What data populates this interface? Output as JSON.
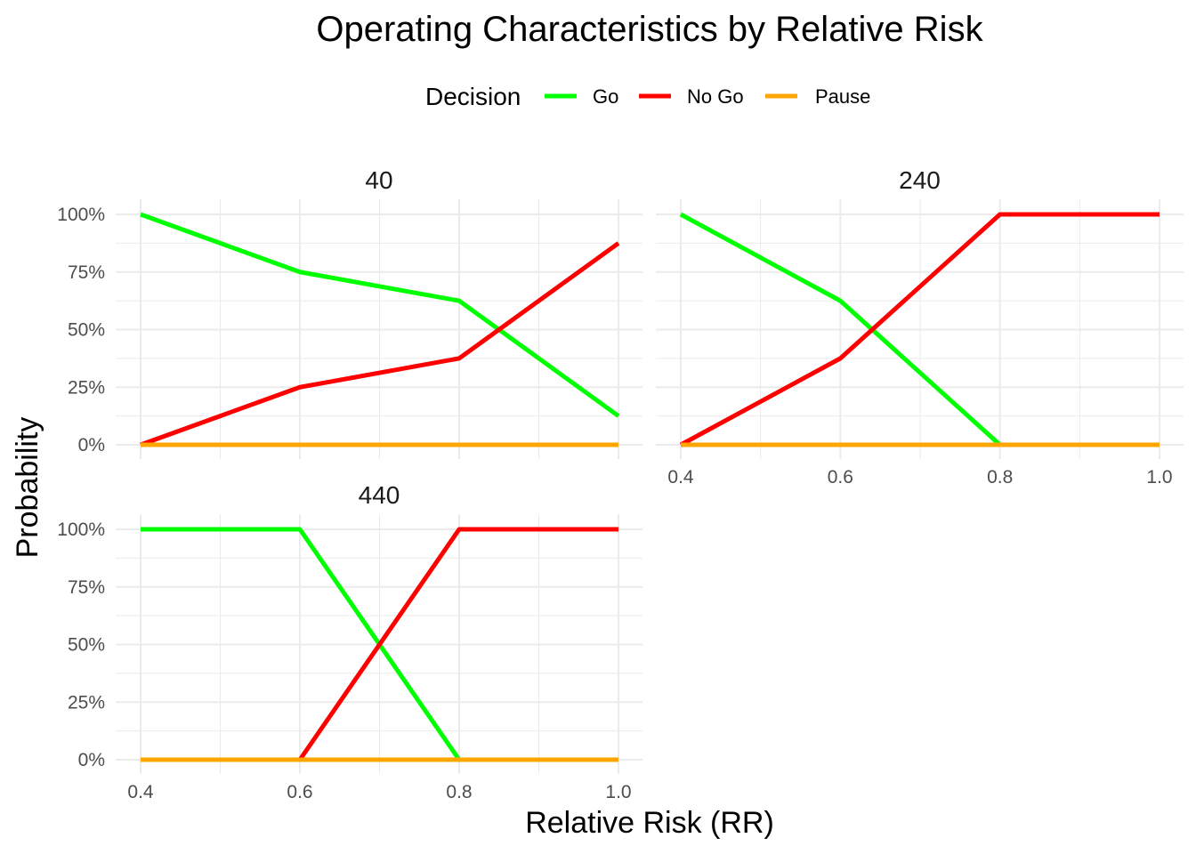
{
  "chart_data": {
    "type": "line",
    "title": "Operating Characteristics by Relative Risk",
    "xlabel": "Relative Risk (RR)",
    "ylabel": "Probability",
    "legend": {
      "title": "Decision",
      "position": "top",
      "entries": [
        "Go",
        "No Go",
        "Pause"
      ]
    },
    "colors": {
      "Go": "#00ff00",
      "No Go": "#ff0000",
      "Pause": "#ffa500",
      "grid": "#ebebeb"
    },
    "x_ticks": [
      "0.4",
      "0.6",
      "0.8",
      "1.0"
    ],
    "y_ticks": [
      "0%",
      "25%",
      "50%",
      "75%",
      "100%"
    ],
    "xlim": [
      0.4,
      1.0
    ],
    "ylim": [
      0,
      1
    ],
    "grid": true,
    "x": [
      0.4,
      0.6,
      0.8,
      1.0
    ],
    "panels": [
      {
        "label": "40",
        "series": [
          {
            "name": "Go",
            "values": [
              1.0,
              0.75,
              0.625,
              0.125
            ]
          },
          {
            "name": "No Go",
            "values": [
              0.0,
              0.25,
              0.375,
              0.875
            ]
          },
          {
            "name": "Pause",
            "values": [
              0.0,
              0.0,
              0.0,
              0.0
            ]
          }
        ]
      },
      {
        "label": "240",
        "series": [
          {
            "name": "Go",
            "values": [
              1.0,
              0.625,
              0.0,
              0.0
            ]
          },
          {
            "name": "No Go",
            "values": [
              0.0,
              0.375,
              1.0,
              1.0
            ]
          },
          {
            "name": "Pause",
            "values": [
              0.0,
              0.0,
              0.0,
              0.0
            ]
          }
        ]
      },
      {
        "label": "440",
        "series": [
          {
            "name": "Go",
            "values": [
              1.0,
              1.0,
              0.0,
              0.0
            ]
          },
          {
            "name": "No Go",
            "values": [
              0.0,
              0.0,
              1.0,
              1.0
            ]
          },
          {
            "name": "Pause",
            "values": [
              0.0,
              0.0,
              0.0,
              0.0
            ]
          }
        ]
      }
    ]
  }
}
